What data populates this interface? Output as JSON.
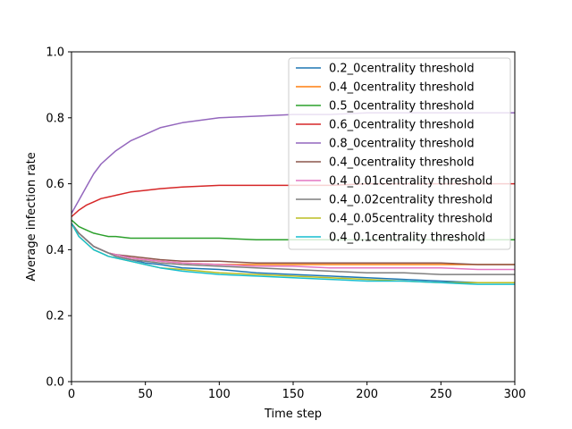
{
  "chart_data": {
    "type": "line",
    "xlabel": "Time step",
    "ylabel": "Average infection rate",
    "xlim": [
      0,
      300
    ],
    "ylim": [
      0,
      1.0
    ],
    "xticks": [
      0,
      50,
      100,
      150,
      200,
      250,
      300
    ],
    "xtick_labels": [
      "0",
      "50",
      "100",
      "150",
      "200",
      "250",
      "300"
    ],
    "yticks": [
      0,
      0.2,
      0.4,
      0.6,
      0.8,
      1.0
    ],
    "ytick_labels": [
      "0.0",
      "0.2",
      "0.4",
      "0.6",
      "0.8",
      "1.0"
    ],
    "grid": false,
    "legend_position": "top-right",
    "x": [
      0,
      5,
      10,
      15,
      20,
      25,
      30,
      40,
      50,
      60,
      75,
      100,
      125,
      150,
      175,
      200,
      225,
      250,
      275,
      300
    ],
    "series": [
      {
        "name": "0.2_0centrality threshold",
        "color": "#1f77b4",
        "values": [
          0.48,
          0.45,
          0.43,
          0.41,
          0.4,
          0.39,
          0.38,
          0.37,
          0.36,
          0.355,
          0.345,
          0.34,
          0.33,
          0.325,
          0.32,
          0.315,
          0.31,
          0.305,
          0.3,
          0.3
        ]
      },
      {
        "name": "0.4_0centrality threshold",
        "color": "#ff7f0e",
        "values": [
          0.48,
          0.45,
          0.43,
          0.41,
          0.4,
          0.39,
          0.385,
          0.375,
          0.37,
          0.365,
          0.36,
          0.355,
          0.355,
          0.355,
          0.355,
          0.355,
          0.355,
          0.355,
          0.355,
          0.355
        ]
      },
      {
        "name": "0.5_0centrality threshold",
        "color": "#2ca02c",
        "values": [
          0.49,
          0.47,
          0.46,
          0.45,
          0.445,
          0.44,
          0.44,
          0.435,
          0.435,
          0.435,
          0.435,
          0.435,
          0.43,
          0.43,
          0.43,
          0.43,
          0.43,
          0.43,
          0.43,
          0.43
        ]
      },
      {
        "name": "0.6_0centrality threshold",
        "color": "#d62728",
        "values": [
          0.5,
          0.52,
          0.535,
          0.545,
          0.555,
          0.56,
          0.565,
          0.575,
          0.58,
          0.585,
          0.59,
          0.595,
          0.595,
          0.595,
          0.595,
          0.6,
          0.6,
          0.6,
          0.6,
          0.6
        ]
      },
      {
        "name": "0.8_0centrality threshold",
        "color": "#9467bd",
        "values": [
          0.51,
          0.55,
          0.59,
          0.63,
          0.66,
          0.68,
          0.7,
          0.73,
          0.75,
          0.77,
          0.785,
          0.8,
          0.805,
          0.81,
          0.81,
          0.815,
          0.815,
          0.815,
          0.815,
          0.815
        ]
      },
      {
        "name": "0.4_0centrality threshold",
        "color": "#8c564b",
        "values": [
          0.48,
          0.45,
          0.43,
          0.41,
          0.4,
          0.39,
          0.385,
          0.38,
          0.375,
          0.37,
          0.365,
          0.365,
          0.36,
          0.36,
          0.36,
          0.36,
          0.36,
          0.36,
          0.355,
          0.355
        ]
      },
      {
        "name": "0.4_0.01centrality threshold",
        "color": "#e377c2",
        "values": [
          0.48,
          0.45,
          0.43,
          0.41,
          0.4,
          0.39,
          0.385,
          0.375,
          0.37,
          0.365,
          0.36,
          0.355,
          0.35,
          0.35,
          0.345,
          0.345,
          0.345,
          0.345,
          0.34,
          0.34
        ]
      },
      {
        "name": "0.4_0.02centrality threshold",
        "color": "#7f7f7f",
        "values": [
          0.48,
          0.45,
          0.43,
          0.41,
          0.4,
          0.39,
          0.38,
          0.37,
          0.365,
          0.36,
          0.355,
          0.35,
          0.345,
          0.34,
          0.335,
          0.33,
          0.33,
          0.325,
          0.325,
          0.325
        ]
      },
      {
        "name": "0.4_0.05centrality threshold",
        "color": "#bcbd22",
        "values": [
          0.48,
          0.44,
          0.42,
          0.4,
          0.39,
          0.38,
          0.375,
          0.365,
          0.355,
          0.345,
          0.34,
          0.33,
          0.325,
          0.32,
          0.315,
          0.31,
          0.305,
          0.3,
          0.3,
          0.3
        ]
      },
      {
        "name": "0.4_0.1centrality threshold",
        "color": "#17becf",
        "values": [
          0.48,
          0.44,
          0.42,
          0.4,
          0.39,
          0.38,
          0.375,
          0.365,
          0.355,
          0.345,
          0.335,
          0.325,
          0.32,
          0.315,
          0.31,
          0.305,
          0.305,
          0.3,
          0.295,
          0.295
        ]
      }
    ]
  }
}
